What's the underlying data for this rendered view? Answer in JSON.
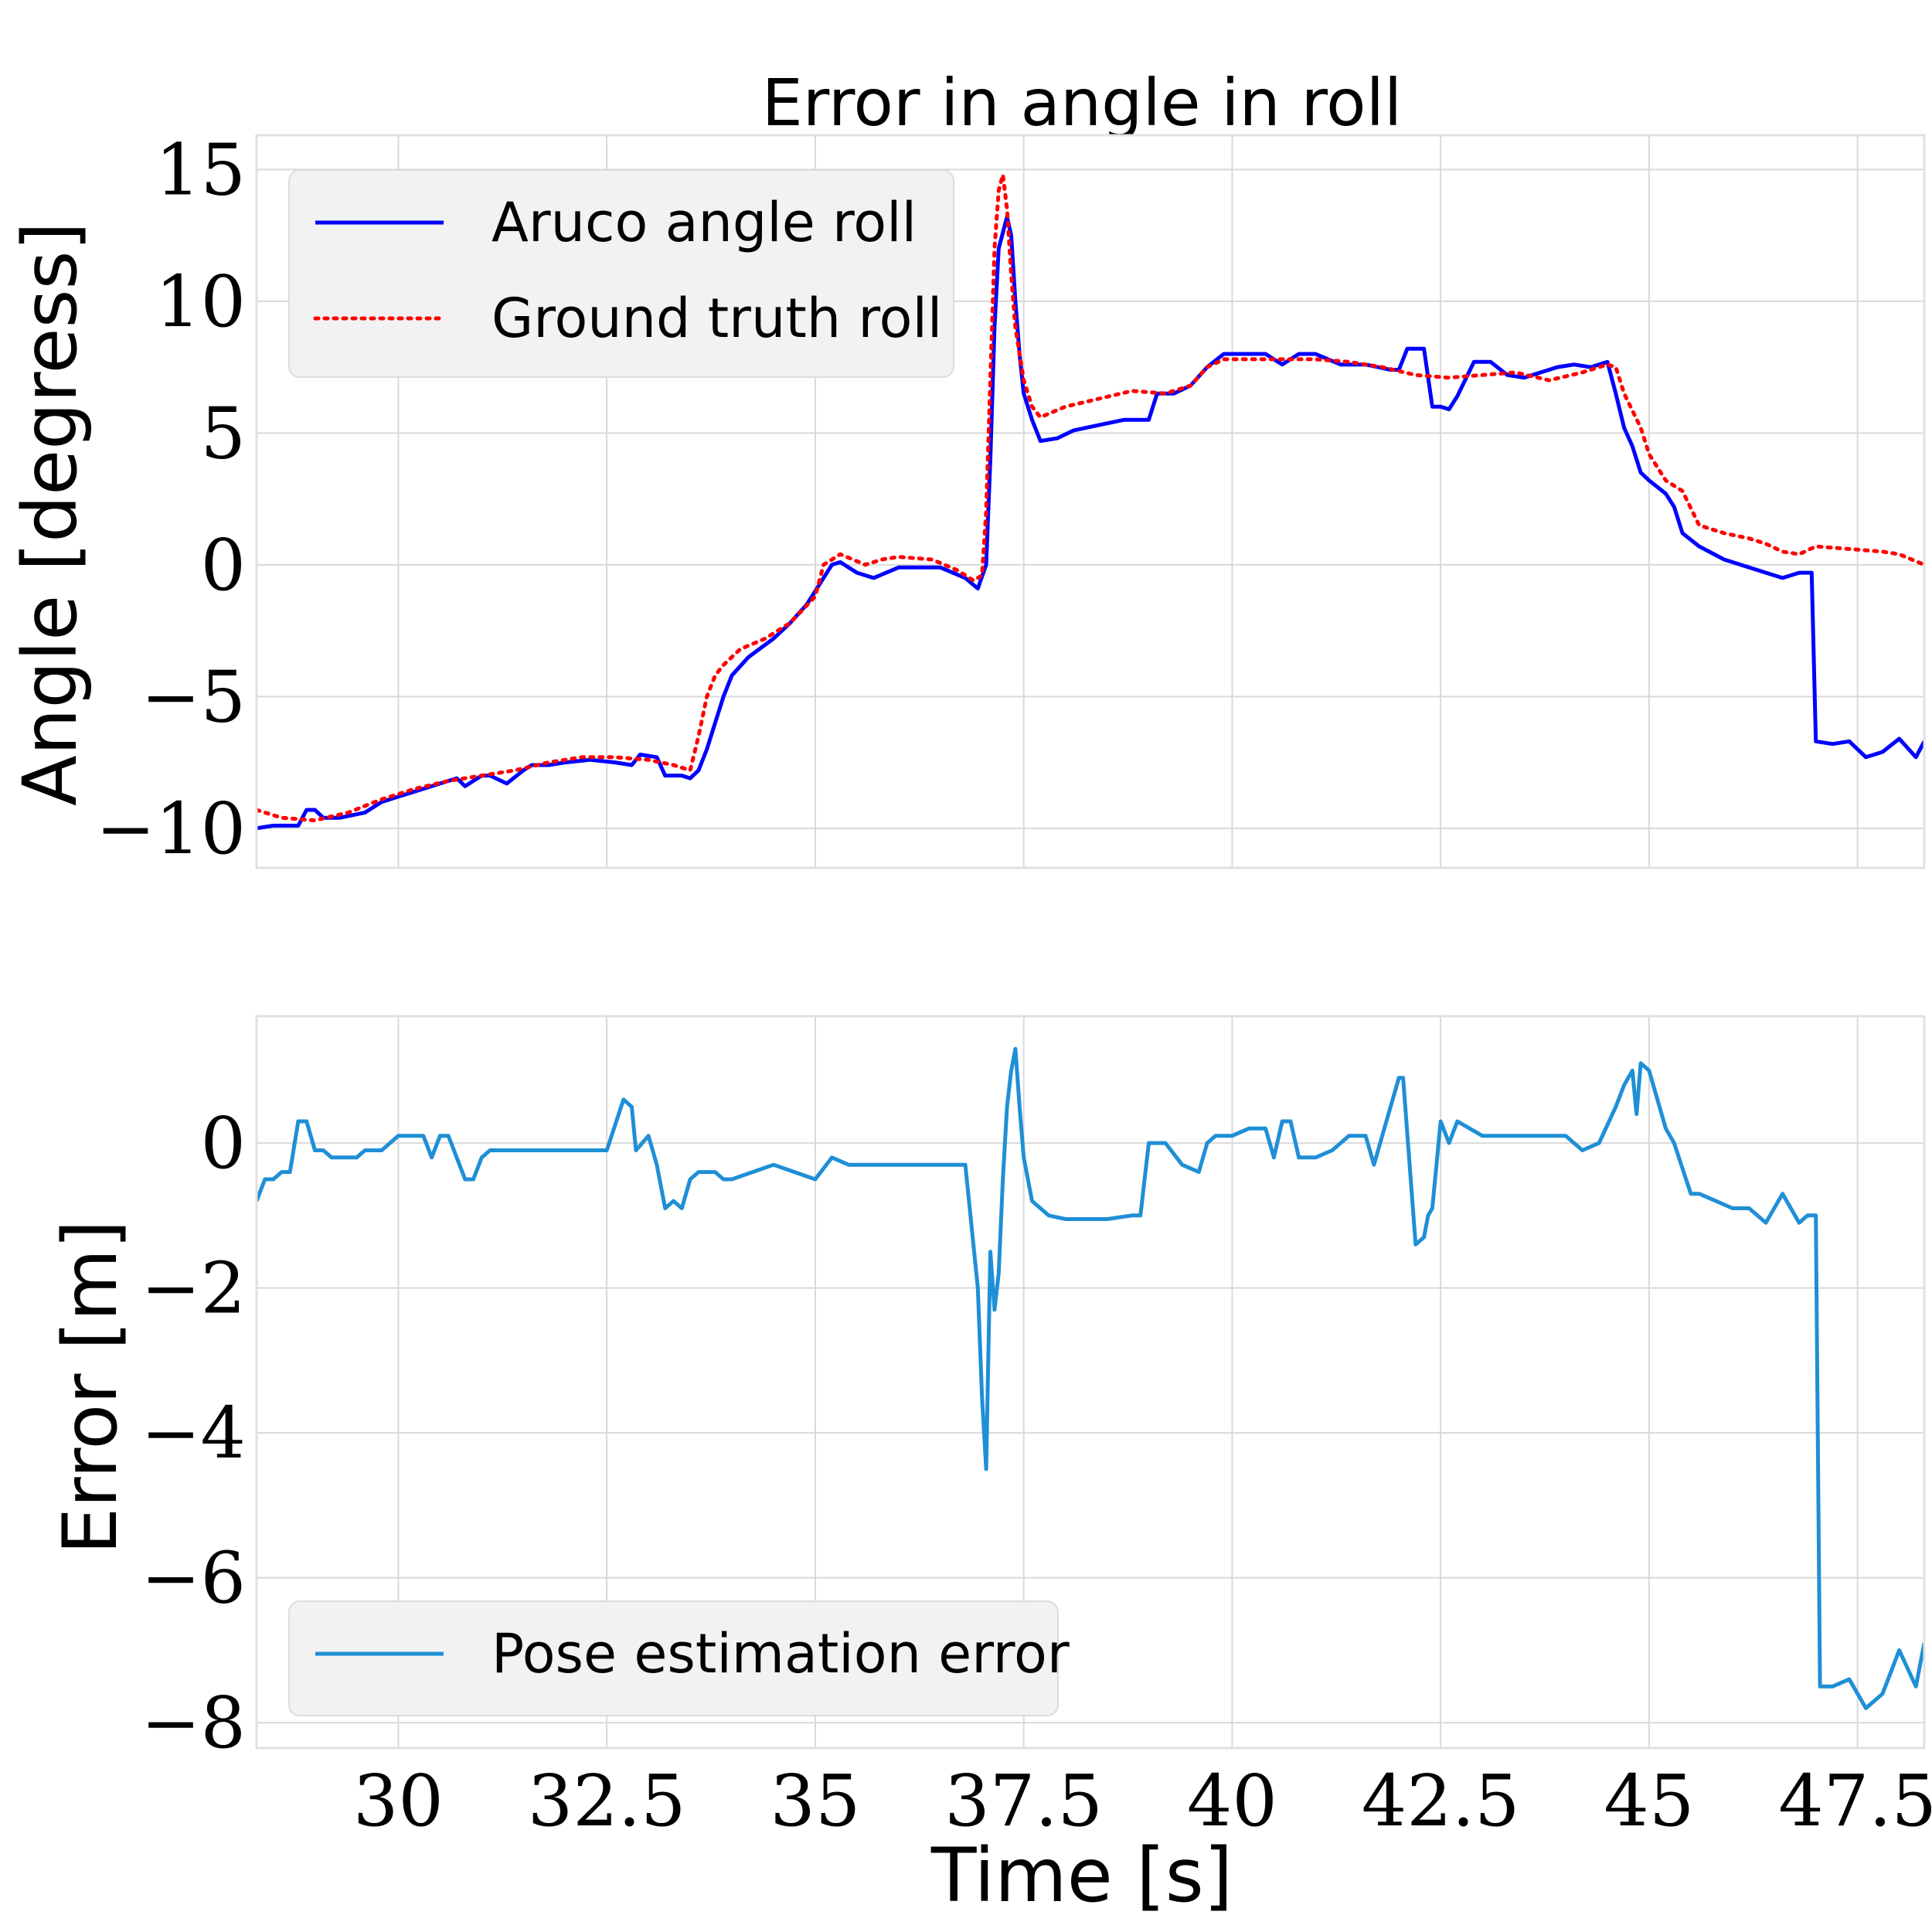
{
  "chart_data": [
    {
      "type": "line",
      "title": "Error in angle in roll",
      "xlabel": "",
      "ylabel": "Angle [degress]",
      "xlim": [
        28.3,
        48.3
      ],
      "ylim": [
        -11.5,
        16.3
      ],
      "xticks": [
        30.0,
        32.5,
        35.0,
        37.5,
        40.0,
        42.5,
        45.0,
        47.5
      ],
      "yticks": [
        -10,
        -5,
        0,
        5,
        10,
        15
      ],
      "grid": true,
      "legend": "top-left",
      "series": [
        {
          "name": "Aruco angle roll",
          "color": "#0000ff",
          "style": "solid",
          "x": [
            28.3,
            28.5,
            28.8,
            28.9,
            29.0,
            29.1,
            29.3,
            29.6,
            29.8,
            30.0,
            30.2,
            30.5,
            30.7,
            30.8,
            31.0,
            31.1,
            31.3,
            31.5,
            31.6,
            31.8,
            32.0,
            32.3,
            32.6,
            32.8,
            32.9,
            33.1,
            33.2,
            33.4,
            33.5,
            33.6,
            33.7,
            33.8,
            33.9,
            34.0,
            34.2,
            34.5,
            34.7,
            34.9,
            35.0,
            35.2,
            35.3,
            35.5,
            35.7,
            36.0,
            36.5,
            36.8,
            36.95,
            37.05,
            37.1,
            37.15,
            37.2,
            37.3,
            37.35,
            37.4,
            37.45,
            37.5,
            37.6,
            37.7,
            37.9,
            38.1,
            38.4,
            38.7,
            39.0,
            39.1,
            39.3,
            39.5,
            39.7,
            39.9,
            40.1,
            40.4,
            40.6,
            40.8,
            41.0,
            41.3,
            41.6,
            41.9,
            42.0,
            42.1,
            42.15,
            42.3,
            42.4,
            42.5,
            42.6,
            42.7,
            42.9,
            43.1,
            43.3,
            43.5,
            43.7,
            43.9,
            44.1,
            44.3,
            44.5,
            44.6,
            44.7,
            44.8,
            44.9,
            45.0,
            45.2,
            45.3,
            45.4,
            45.6,
            45.9,
            46.2,
            46.5,
            46.6,
            46.7,
            46.8,
            46.95,
            47.0,
            47.2,
            47.4,
            47.6,
            47.8,
            48.0,
            48.2,
            48.3
          ],
          "y": [
            -10.0,
            -9.9,
            -9.9,
            -9.3,
            -9.3,
            -9.6,
            -9.6,
            -9.4,
            -9.0,
            -8.8,
            -8.6,
            -8.3,
            -8.1,
            -8.4,
            -8.0,
            -8.0,
            -8.3,
            -7.8,
            -7.6,
            -7.6,
            -7.5,
            -7.4,
            -7.5,
            -7.6,
            -7.2,
            -7.3,
            -8.0,
            -8.0,
            -8.1,
            -7.8,
            -7.0,
            -6.0,
            -5.0,
            -4.2,
            -3.5,
            -2.8,
            -2.2,
            -1.5,
            -1.0,
            0.0,
            0.1,
            -0.3,
            -0.5,
            -0.1,
            -0.1,
            -0.5,
            -0.9,
            0.0,
            4.0,
            9.0,
            12.0,
            13.2,
            12.5,
            10.0,
            8.0,
            6.5,
            5.5,
            4.7,
            4.8,
            5.1,
            5.3,
            5.5,
            5.5,
            6.5,
            6.5,
            6.8,
            7.5,
            8.0,
            8.0,
            8.0,
            7.6,
            8.0,
            8.0,
            7.6,
            7.6,
            7.4,
            7.4,
            8.2,
            8.2,
            8.2,
            6.0,
            6.0,
            5.9,
            6.4,
            7.7,
            7.7,
            7.2,
            7.1,
            7.3,
            7.5,
            7.6,
            7.5,
            7.7,
            6.5,
            5.2,
            4.5,
            3.5,
            3.2,
            2.7,
            2.2,
            1.2,
            0.7,
            0.2,
            -0.1,
            -0.4,
            -0.5,
            -0.4,
            -0.3,
            -0.3,
            -6.7,
            -6.8,
            -6.7,
            -7.3,
            -7.1,
            -6.6,
            -7.3,
            -6.7
          ]
        },
        {
          "name": "Ground truth roll",
          "color": "#ff0000",
          "style": "dotted",
          "x": [
            28.3,
            28.6,
            29.0,
            29.4,
            29.8,
            30.2,
            30.6,
            31.0,
            31.4,
            31.8,
            32.2,
            32.6,
            33.0,
            33.3,
            33.5,
            33.6,
            33.7,
            33.8,
            33.9,
            34.1,
            34.4,
            34.7,
            35.0,
            35.1,
            35.3,
            35.6,
            35.8,
            36.0,
            36.4,
            36.7,
            36.9,
            37.0,
            37.05,
            37.1,
            37.15,
            37.2,
            37.25,
            37.3,
            37.35,
            37.4,
            37.5,
            37.6,
            37.7,
            38.0,
            38.4,
            38.8,
            39.2,
            39.5,
            39.7,
            39.9,
            40.2,
            40.6,
            41.0,
            41.4,
            41.8,
            42.2,
            42.6,
            43.0,
            43.4,
            43.8,
            44.2,
            44.5,
            44.6,
            44.7,
            44.9,
            45.0,
            45.2,
            45.4,
            45.6,
            45.9,
            46.2,
            46.4,
            46.6,
            46.8,
            47.0,
            47.4,
            47.8,
            48.0,
            48.3
          ],
          "y": [
            -9.3,
            -9.6,
            -9.7,
            -9.4,
            -8.9,
            -8.5,
            -8.2,
            -8.0,
            -7.8,
            -7.5,
            -7.3,
            -7.3,
            -7.4,
            -7.6,
            -7.8,
            -6.5,
            -5.0,
            -4.2,
            -3.8,
            -3.2,
            -2.8,
            -2.2,
            -1.2,
            0.0,
            0.4,
            0.0,
            0.2,
            0.3,
            0.2,
            -0.2,
            -0.6,
            -0.4,
            2.0,
            7.0,
            12.0,
            14.2,
            14.8,
            13.5,
            11.0,
            9.0,
            7.0,
            6.0,
            5.6,
            6.0,
            6.3,
            6.6,
            6.5,
            6.8,
            7.5,
            7.8,
            7.8,
            7.8,
            7.8,
            7.7,
            7.5,
            7.2,
            7.1,
            7.2,
            7.3,
            7.0,
            7.3,
            7.6,
            7.5,
            6.5,
            5.2,
            4.2,
            3.2,
            2.8,
            1.5,
            1.2,
            1.0,
            0.8,
            0.5,
            0.4,
            0.7,
            0.6,
            0.5,
            0.4,
            0.0
          ]
        }
      ]
    },
    {
      "type": "line",
      "title": "",
      "xlabel": "Time [s]",
      "ylabel": "Error [m]",
      "xlim": [
        28.3,
        48.3
      ],
      "ylim": [
        -8.35,
        1.75
      ],
      "xticks": [
        30.0,
        32.5,
        35.0,
        37.5,
        40.0,
        42.5,
        45.0,
        47.5
      ],
      "yticks": [
        -8,
        -6,
        -4,
        -2,
        0
      ],
      "grid": true,
      "legend": "bottom-left",
      "series": [
        {
          "name": "Pose estimation error",
          "color": "#1f8fd6",
          "style": "solid",
          "x": [
            28.3,
            28.4,
            28.5,
            28.6,
            28.7,
            28.8,
            28.85,
            28.9,
            29.0,
            29.1,
            29.2,
            29.4,
            29.5,
            29.6,
            29.8,
            30.0,
            30.1,
            30.3,
            30.4,
            30.5,
            30.6,
            30.8,
            30.9,
            31.0,
            31.1,
            31.2,
            31.5,
            32.0,
            32.5,
            32.7,
            32.8,
            32.85,
            33.0,
            33.1,
            33.2,
            33.3,
            33.4,
            33.5,
            33.6,
            33.7,
            33.8,
            33.9,
            34.0,
            34.5,
            35.0,
            35.2,
            35.4,
            35.6,
            35.8,
            36.0,
            36.5,
            36.8,
            36.95,
            37.0,
            37.05,
            37.1,
            37.15,
            37.2,
            37.25,
            37.3,
            37.35,
            37.4,
            37.45,
            37.5,
            37.6,
            37.8,
            38.0,
            38.5,
            38.8,
            38.9,
            39.0,
            39.2,
            39.4,
            39.6,
            39.7,
            39.8,
            40.0,
            40.2,
            40.4,
            40.5,
            40.6,
            40.7,
            40.8,
            41.0,
            41.2,
            41.4,
            41.6,
            41.7,
            41.8,
            42.0,
            42.05,
            42.2,
            42.3,
            42.35,
            42.4,
            42.5,
            42.6,
            42.7,
            43.0,
            43.5,
            44.0,
            44.2,
            44.4,
            44.6,
            44.7,
            44.8,
            44.85,
            44.9,
            45.0,
            45.1,
            45.2,
            45.3,
            45.5,
            45.6,
            45.8,
            46.0,
            46.2,
            46.4,
            46.5,
            46.6,
            46.8,
            46.9,
            47.0,
            47.05,
            47.2,
            47.4,
            47.6,
            47.8,
            48.0,
            48.2,
            48.3
          ],
          "y": [
            -0.8,
            -0.5,
            -0.5,
            -0.4,
            -0.4,
            0.3,
            0.3,
            0.3,
            -0.1,
            -0.1,
            -0.2,
            -0.2,
            -0.2,
            -0.1,
            -0.1,
            0.1,
            0.1,
            0.1,
            -0.2,
            0.1,
            0.1,
            -0.5,
            -0.5,
            -0.2,
            -0.1,
            -0.1,
            -0.1,
            -0.1,
            -0.1,
            0.6,
            0.5,
            -0.1,
            0.1,
            -0.3,
            -0.9,
            -0.8,
            -0.9,
            -0.5,
            -0.4,
            -0.4,
            -0.4,
            -0.5,
            -0.5,
            -0.3,
            -0.5,
            -0.2,
            -0.3,
            -0.3,
            -0.3,
            -0.3,
            -0.3,
            -0.3,
            -2.0,
            -3.5,
            -4.5,
            -1.5,
            -2.3,
            -1.8,
            -0.5,
            0.5,
            1.0,
            1.3,
            0.5,
            -0.2,
            -0.8,
            -1.0,
            -1.05,
            -1.05,
            -1.0,
            -1.0,
            0.0,
            0.0,
            -0.3,
            -0.4,
            0.0,
            0.1,
            0.1,
            0.2,
            0.2,
            -0.2,
            0.3,
            0.3,
            -0.2,
            -0.2,
            -0.1,
            0.1,
            0.1,
            -0.3,
            0.1,
            0.9,
            0.9,
            -1.4,
            -1.3,
            -1.0,
            -0.9,
            0.3,
            0.0,
            0.3,
            0.1,
            0.1,
            0.1,
            -0.1,
            0.0,
            0.5,
            0.8,
            1.0,
            0.4,
            1.1,
            1.0,
            0.6,
            0.2,
            0.0,
            -0.7,
            -0.7,
            -0.8,
            -0.9,
            -0.9,
            -1.1,
            -0.9,
            -0.7,
            -1.1,
            -1.0,
            -1.0,
            -7.5,
            -7.5,
            -7.4,
            -7.8,
            -7.6,
            -7.0,
            -7.5,
            -6.9
          ]
        }
      ]
    }
  ]
}
